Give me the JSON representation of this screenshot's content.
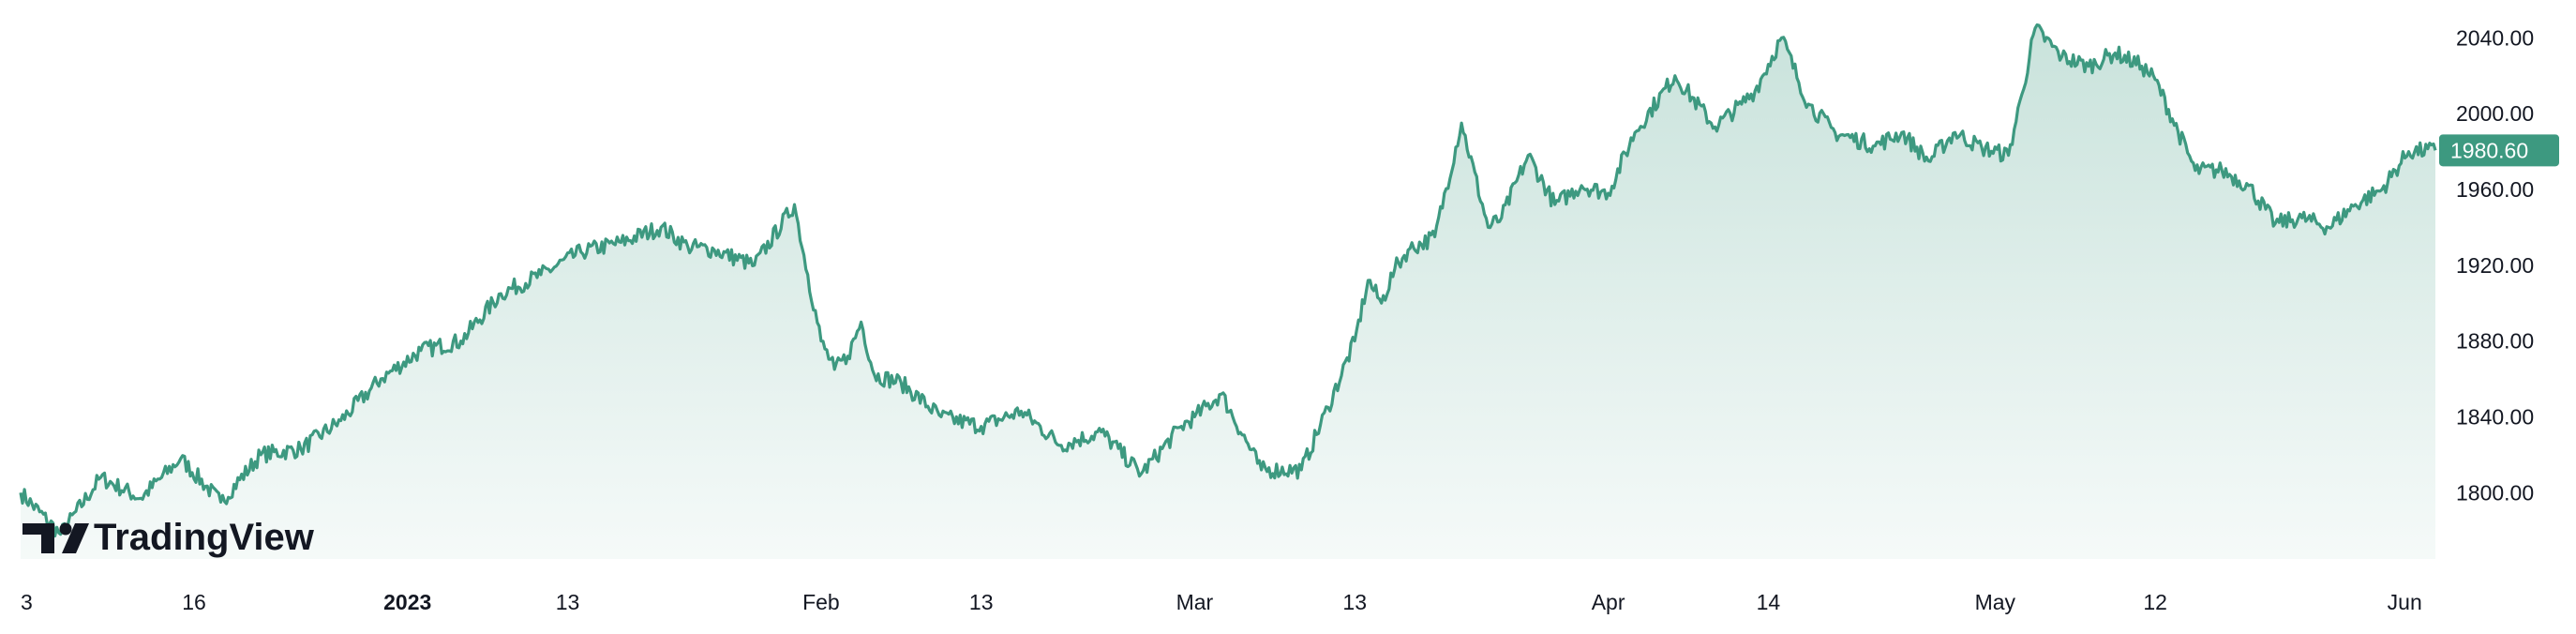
{
  "colors": {
    "line": "#3d9980",
    "fill_top": "#3d9980",
    "fill_bottom": "#ffffff",
    "price_badge": "#3d9980",
    "text": "#131722"
  },
  "logo": {
    "text": "TradingView",
    "icon": "tradingview-logo-icon"
  },
  "chart_data": {
    "type": "area",
    "title": "",
    "xlabel": "",
    "ylabel": "",
    "ylim": [
      1765,
      2055
    ],
    "grid": false,
    "y_ticks": [
      "2040.00",
      "2000.00",
      "1960.00",
      "1920.00",
      "1880.00",
      "1840.00",
      "1800.00"
    ],
    "y_tick_values": [
      2040,
      2000,
      1960,
      1920,
      1880,
      1840,
      1800
    ],
    "x_ticks": [
      {
        "label": "3",
        "x": 0
      },
      {
        "label": "16",
        "x": 13
      },
      {
        "label": "2023",
        "x": 29,
        "bold": true
      },
      {
        "label": "13",
        "x": 41
      },
      {
        "label": "Feb",
        "x": 60
      },
      {
        "label": "13",
        "x": 72
      },
      {
        "label": "Mar",
        "x": 88
      },
      {
        "label": "13",
        "x": 100
      },
      {
        "label": "Apr",
        "x": 119
      },
      {
        "label": "14",
        "x": 131
      },
      {
        "label": "May",
        "x": 148
      },
      {
        "label": "12",
        "x": 160
      },
      {
        "label": "Jun",
        "x": 180
      }
    ],
    "last_price": "1980.60",
    "last_value": 1980.6,
    "x": [
      0,
      3,
      6,
      9,
      12,
      15,
      18,
      21,
      24,
      27,
      30,
      33,
      36,
      39,
      42,
      45,
      48,
      50,
      52,
      55,
      58,
      59,
      60,
      61,
      62,
      63,
      64,
      66,
      69,
      72,
      75,
      78,
      81,
      84,
      87,
      88,
      90,
      93,
      96,
      98,
      100,
      101,
      102,
      103,
      104,
      106,
      108,
      110,
      111,
      113,
      115,
      117,
      119,
      121,
      124,
      127,
      129,
      130,
      132,
      134,
      136,
      139,
      141,
      143,
      145,
      147,
      149,
      150,
      151,
      153,
      155,
      157,
      159,
      160,
      163,
      165,
      167,
      169,
      171,
      173,
      175,
      177,
      179,
      181
    ],
    "series": [
      {
        "values": [
          1800,
          1778,
          1808,
          1797,
          1818,
          1795,
          1820,
          1823,
          1838,
          1860,
          1875,
          1880,
          1905,
          1915,
          1927,
          1932,
          1940,
          1930,
          1928,
          1920,
          1952,
          1915,
          1880,
          1865,
          1872,
          1890,
          1862,
          1858,
          1840,
          1835,
          1843,
          1825,
          1832,
          1810,
          1835,
          1840,
          1852,
          1812,
          1812,
          1845,
          1880,
          1912,
          1900,
          1918,
          1928,
          1935,
          1995,
          1940,
          1945,
          1978,
          1952,
          1962,
          1958,
          1990,
          2020,
          1993,
          2005,
          2012,
          2040,
          2005,
          1990,
          1983,
          1990,
          1975,
          1990,
          1982,
          1978,
          2010,
          2045,
          2030,
          2025,
          2032,
          2025,
          2018,
          1970,
          1970,
          1962,
          1942,
          1945,
          1940,
          1952,
          1960,
          1980,
          1980.6
        ]
      }
    ]
  }
}
